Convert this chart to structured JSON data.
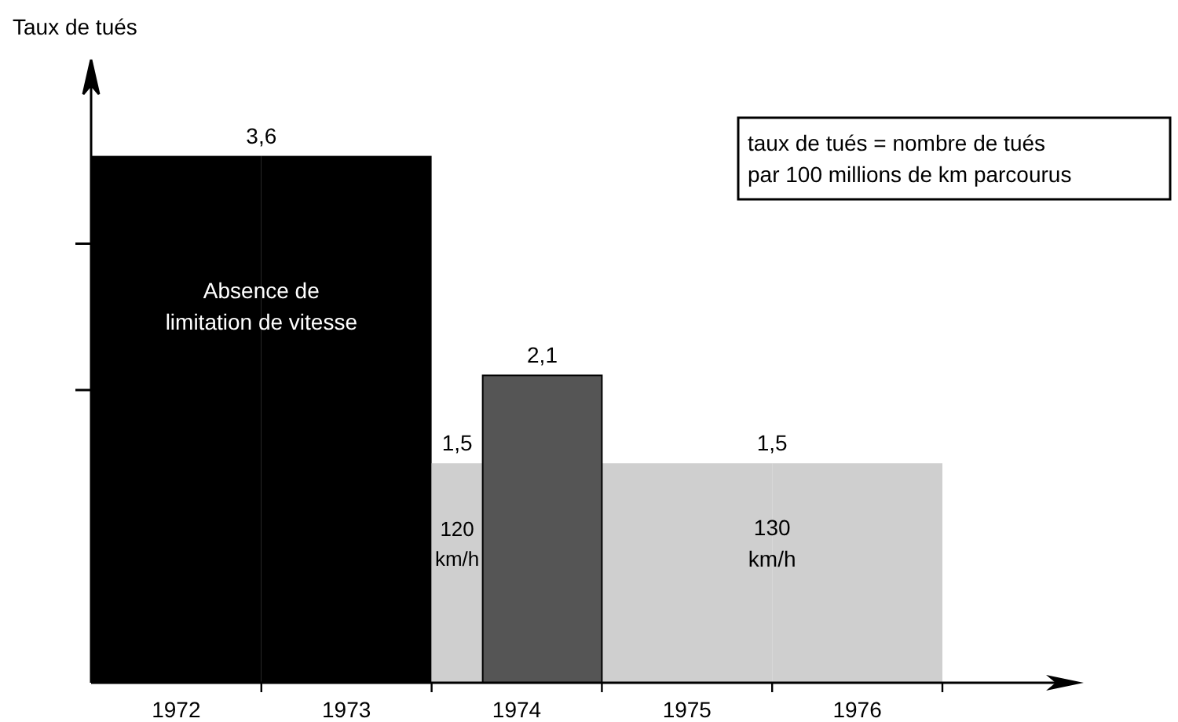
{
  "chart_data": {
    "type": "bar",
    "ylabel": "Taux de tués",
    "categories": [
      "1972",
      "1973",
      "1974",
      "1975",
      "1976"
    ],
    "ylim": [
      0,
      4
    ],
    "yticks": [
      {
        "value": 2,
        "label": null
      },
      {
        "value": 3,
        "label": null
      }
    ],
    "series": [
      {
        "colors": [
          "#000000",
          "#000000",
          "#cfcfcf",
          "#cfcfcf",
          "#cfcfcf"
        ],
        "values": [
          3.6,
          3.6,
          1.5,
          1.5,
          1.5
        ],
        "value_labels": [
          "3,6",
          null,
          "1,5",
          "1,5",
          null
        ]
      },
      {
        "color": "#555555",
        "values": [
          null,
          null,
          2.1,
          null,
          null
        ],
        "value_labels": [
          null,
          null,
          "2,1",
          null,
          null
        ]
      }
    ],
    "annotations": [
      "taux de tués = nombre de tués\npar 100 millions de km parcourus",
      "Absence de\nlimitation de vitesse",
      "120\nkm/h",
      "130\nkm/h"
    ],
    "grid": false
  }
}
